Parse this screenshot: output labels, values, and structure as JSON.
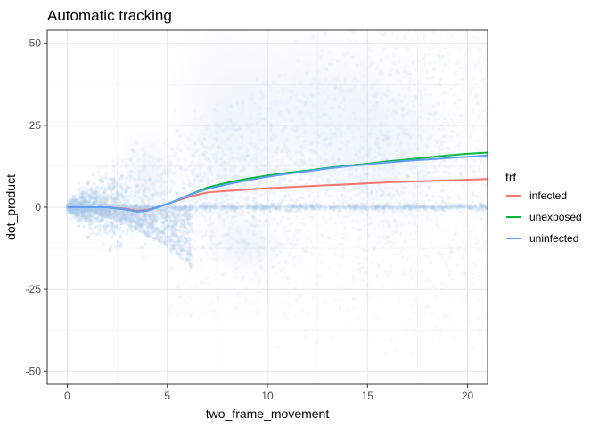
{
  "chart_data": {
    "type": "scatter",
    "title": "Automatic tracking",
    "xlabel": "two_frame_movement",
    "ylabel": "dot_product",
    "xlim": [
      -1,
      21
    ],
    "ylim": [
      -54,
      54
    ],
    "x_ticks": [
      0,
      5,
      10,
      15,
      20
    ],
    "y_ticks": [
      -50,
      -25,
      0,
      25,
      50
    ],
    "x_tick_labels": [
      "0",
      "5",
      "10",
      "15",
      "20"
    ],
    "y_tick_labels": [
      "-50",
      "-25",
      "0",
      "25",
      "50"
    ],
    "grid": true,
    "legend": {
      "title": "trt",
      "position": "right"
    },
    "scatter_color": "#a9c8ea",
    "series": [
      {
        "name": "infected",
        "color": "#F8766D",
        "x": [
          0,
          0.5,
          1,
          2,
          3,
          3.5,
          4,
          4.5,
          5,
          5.5,
          6,
          6.5,
          7,
          8,
          9,
          10,
          11,
          12,
          13,
          14,
          15,
          16,
          17,
          18,
          19,
          20,
          21
        ],
        "y": [
          0,
          0,
          0,
          0,
          -0.5,
          -1,
          -0.8,
          0,
          1,
          2,
          3,
          3.8,
          4.5,
          5,
          5.4,
          5.8,
          6.1,
          6.4,
          6.7,
          7,
          7.3,
          7.6,
          7.8,
          8,
          8.2,
          8.4,
          8.6
        ]
      },
      {
        "name": "unexposed",
        "color": "#00BA38",
        "x": [
          0,
          0.5,
          1,
          2,
          3,
          3.5,
          4,
          4.5,
          5,
          5.5,
          6,
          6.5,
          7,
          8,
          9,
          10,
          11,
          12,
          13,
          14,
          15,
          16,
          17,
          18,
          19,
          20,
          21
        ],
        "y": [
          0,
          0,
          0,
          0,
          -0.7,
          -1.3,
          -1,
          0,
          1,
          2.2,
          3.5,
          4.8,
          6,
          7.5,
          8.7,
          9.7,
          10.5,
          11.2,
          12,
          12.7,
          13.3,
          14,
          14.6,
          15.2,
          15.8,
          16.3,
          16.7
        ]
      },
      {
        "name": "uninfected",
        "color": "#619CFF",
        "x": [
          0,
          0.5,
          1,
          2,
          3,
          3.5,
          4,
          4.5,
          5,
          5.5,
          6,
          6.5,
          7,
          8,
          9,
          10,
          11,
          12,
          13,
          14,
          15,
          16,
          17,
          18,
          19,
          20,
          21
        ],
        "y": [
          0,
          0,
          0,
          0,
          -0.7,
          -1.3,
          -1,
          0,
          1,
          2.2,
          3.5,
          4.6,
          5.6,
          7,
          8.2,
          9.3,
          10.2,
          11,
          11.8,
          12.5,
          13.1,
          13.7,
          14.2,
          14.6,
          15,
          15.4,
          15.8
        ]
      }
    ]
  }
}
